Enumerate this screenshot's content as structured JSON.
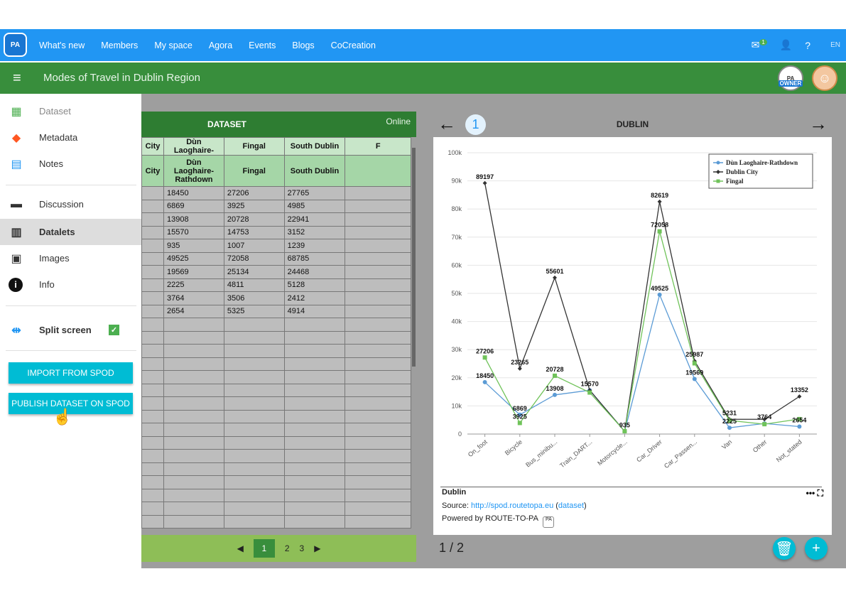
{
  "topnav": {
    "logo": "PA",
    "links": [
      "What's new",
      "Members",
      "My space",
      "Agora",
      "Events",
      "Blogs",
      "CoCreation"
    ],
    "notif_badge": "1",
    "help": "?",
    "lang": "EN"
  },
  "appbar": {
    "title": "Modes of Travel in Dublin Region",
    "owner_badge": "OWNER"
  },
  "sidebar": {
    "items": [
      {
        "label": "Dataset",
        "icon": "grid-icon"
      },
      {
        "label": "Metadata",
        "icon": "tag-icon"
      },
      {
        "label": "Notes",
        "icon": "document-icon"
      },
      {
        "label": "Discussion",
        "icon": "chat-icon"
      },
      {
        "label": "Datalets",
        "icon": "bar-chart-icon"
      },
      {
        "label": "Images",
        "icon": "image-icon"
      },
      {
        "label": "Info",
        "icon": "info-icon"
      }
    ],
    "split_screen": "Split screen",
    "import_btn": "IMPORT FROM SPOD",
    "publish_btn": "PUBLISH DATASET ON SPOD"
  },
  "dataset": {
    "title": "DATASET",
    "status": "Online",
    "headers_top": [
      "City",
      "Dùn Laoghaire-",
      "Fingal",
      "South Dublin",
      "F"
    ],
    "headers_full": [
      "City",
      "Dùn Laoghaire-Rathdown",
      "Fingal",
      "South Dublin",
      ""
    ],
    "rows": [
      [
        "18450",
        "27206",
        "27765"
      ],
      [
        "6869",
        "3925",
        "4985"
      ],
      [
        "13908",
        "20728",
        "22941"
      ],
      [
        "15570",
        "14753",
        "3152"
      ],
      [
        "935",
        "1007",
        "1239"
      ],
      [
        "49525",
        "72058",
        "68785"
      ],
      [
        "19569",
        "25134",
        "24468"
      ],
      [
        "2225",
        "4811",
        "5128"
      ],
      [
        "3764",
        "3506",
        "2412"
      ],
      [
        "2654",
        "5325",
        "4914"
      ]
    ],
    "pages": [
      "1",
      "2",
      "3"
    ],
    "current_page": "1"
  },
  "datalet": {
    "title": "DUBLIN",
    "index": "1",
    "caption_title": "Dublin",
    "source_label": "Source:",
    "source_link": "http://spod.routetopa.eu",
    "dataset_link": "dataset",
    "powered_by": "Powered by ROUTE-TO-PA",
    "count": "1 / 2"
  },
  "chart_data": {
    "type": "line",
    "categories": [
      "On_foot",
      "Bicycle",
      "Bus_minibu...",
      "Train_DART...",
      "Motorcycle...",
      "Car_Driver",
      "Car_Passen...",
      "Van",
      "Other",
      "Not_stated"
    ],
    "yticks": [
      "0",
      "10k",
      "20k",
      "30k",
      "40k",
      "50k",
      "60k",
      "70k",
      "80k",
      "90k",
      "100k"
    ],
    "ylim": [
      0,
      100000
    ],
    "legend_position": "top-right",
    "series": [
      {
        "name": "Dùn Laoghaire-Rathdown",
        "color": "#5b9bd5",
        "marker": "circle",
        "values": [
          18450,
          6869,
          13908,
          15570,
          935,
          49525,
          19569,
          2225,
          3764,
          2654
        ]
      },
      {
        "name": "Dublin City",
        "color": "#333333",
        "marker": "diamond",
        "values": [
          89197,
          23265,
          55601,
          15570,
          935,
          82619,
          25987,
          5231,
          5231,
          13352
        ]
      },
      {
        "name": "Fingal",
        "color": "#70c35a",
        "marker": "square",
        "values": [
          27206,
          3925,
          20728,
          14753,
          1007,
          72058,
          25134,
          4811,
          3506,
          5325
        ]
      }
    ],
    "labels": [
      {
        "text": "89197",
        "cat": 0,
        "y": 89197
      },
      {
        "text": "27206",
        "cat": 0,
        "y": 27206
      },
      {
        "text": "18450",
        "cat": 0,
        "y": 18450
      },
      {
        "text": "23265",
        "cat": 1,
        "y": 23265
      },
      {
        "text": "6869",
        "cat": 1,
        "y": 6869
      },
      {
        "text": "3925",
        "cat": 1,
        "y": 3925
      },
      {
        "text": "55601",
        "cat": 2,
        "y": 55601
      },
      {
        "text": "20728",
        "cat": 2,
        "y": 20728
      },
      {
        "text": "13908",
        "cat": 2,
        "y": 13908
      },
      {
        "text": "15570",
        "cat": 3,
        "y": 15570
      },
      {
        "text": "935",
        "cat": 4,
        "y": 935
      },
      {
        "text": "82619",
        "cat": 5,
        "y": 82619
      },
      {
        "text": "72058",
        "cat": 5,
        "y": 72058
      },
      {
        "text": "49525",
        "cat": 5,
        "y": 49525
      },
      {
        "text": "25987",
        "cat": 6,
        "y": 25987
      },
      {
        "text": "19569",
        "cat": 6,
        "y": 19569
      },
      {
        "text": "5231",
        "cat": 7,
        "y": 5231
      },
      {
        "text": "2225",
        "cat": 7,
        "y": 2225
      },
      {
        "text": "3764",
        "cat": 8,
        "y": 3764
      },
      {
        "text": "13352",
        "cat": 9,
        "y": 13352
      },
      {
        "text": "2654",
        "cat": 9,
        "y": 2654
      }
    ]
  }
}
